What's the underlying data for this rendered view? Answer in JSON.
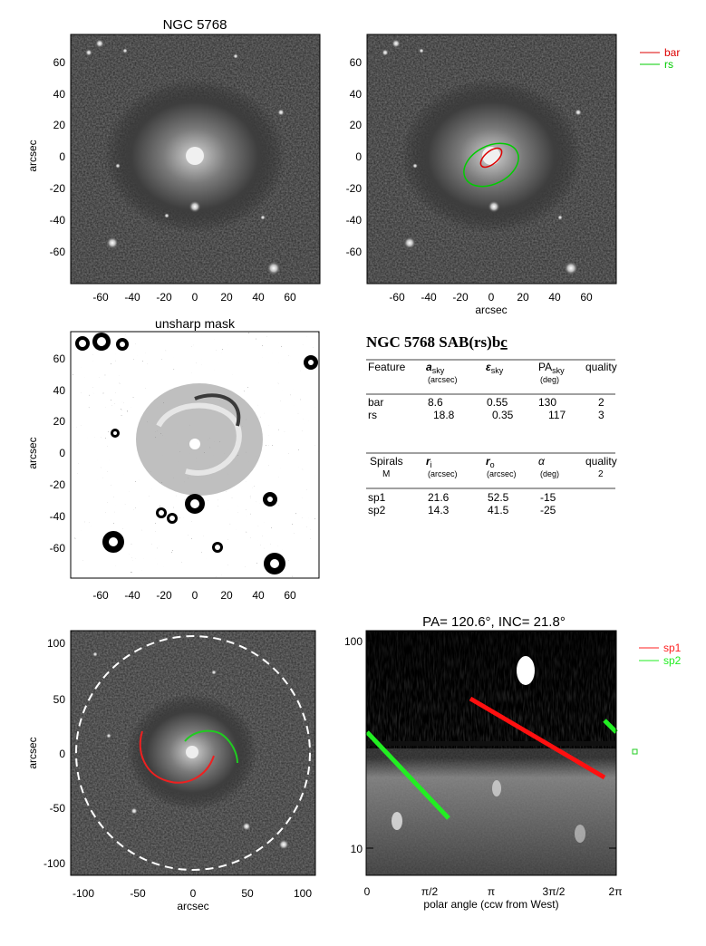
{
  "panels": {
    "top_left": {
      "title": "NGC 5768",
      "ylabel": "arcsec",
      "x_ticks": [
        "-60",
        "-40",
        "-20",
        "0",
        "20",
        "40",
        "60"
      ],
      "y_ticks": [
        "60",
        "40",
        "20",
        "0",
        "-20",
        "-40",
        "-60"
      ]
    },
    "top_right": {
      "xlabel": "arcsec",
      "x_ticks": [
        "-60",
        "-40",
        "-20",
        "0",
        "20",
        "40",
        "60"
      ],
      "y_ticks": [
        "60",
        "40",
        "20",
        "0",
        "-20",
        "-40",
        "-60"
      ],
      "legend": [
        {
          "label": "bar",
          "color": "#dd0000"
        },
        {
          "label": "rs",
          "color": "#00cc00"
        }
      ]
    },
    "mid_left": {
      "title": "unsharp mask",
      "ylabel": "arcsec",
      "x_ticks": [
        "-60",
        "-40",
        "-20",
        "0",
        "20",
        "40",
        "60"
      ],
      "y_ticks": [
        "60",
        "40",
        "20",
        "0",
        "-20",
        "-40",
        "-60"
      ]
    },
    "bottom_left": {
      "xlabel": "arcsec",
      "ylabel": "arcsec",
      "x_ticks": [
        "-100",
        "-50",
        "0",
        "50",
        "100"
      ],
      "y_ticks": [
        "100",
        "50",
        "0",
        "-50",
        "-100"
      ]
    },
    "bottom_right": {
      "title": "PA= 120.6°, INC=  21.8°",
      "xlabel": "polar angle (ccw from West)",
      "x_ticks": [
        "0",
        "π/2",
        "π",
        "3π/2",
        "2π"
      ],
      "y_ticks": [
        "100",
        "10"
      ],
      "legend": [
        {
          "label": "sp1",
          "color": "#ff2020"
        },
        {
          "label": "sp2",
          "color": "#20ee20"
        }
      ]
    }
  },
  "info_table": {
    "title": "NGC 5768  SAB(rs)b",
    "title_suffix": "c",
    "features_header": {
      "feature": "Feature",
      "a": "a",
      "a_sub": "sky",
      "a_unit": "(arcsec)",
      "eps": "ε",
      "eps_sub": "sky",
      "pa": "PA",
      "pa_sub": "sky",
      "pa_unit": "(deg)",
      "quality": "quality"
    },
    "features": [
      {
        "name": "bar",
        "a": "8.6",
        "eps": "0.55",
        "pa": "130",
        "quality": "2"
      },
      {
        "name": "rs",
        "a": "18.8",
        "eps": "0.35",
        "pa": "117",
        "quality": "3"
      }
    ],
    "spirals_header": {
      "spirals": "Spirals",
      "m": "M",
      "ri": "r",
      "ri_sub": "i",
      "ri_unit": "(arcsec)",
      "ro": "r",
      "ro_sub": "o",
      "ro_unit": "(arcsec)",
      "alpha": "α",
      "alpha_unit": "(deg)",
      "quality": "quality",
      "quality_value": "2"
    },
    "spirals": [
      {
        "name": "sp1",
        "ri": "21.6",
        "ro": "52.5",
        "alpha": "-15"
      },
      {
        "name": "sp2",
        "ri": "14.3",
        "ro": "41.5",
        "alpha": "-25"
      }
    ]
  }
}
